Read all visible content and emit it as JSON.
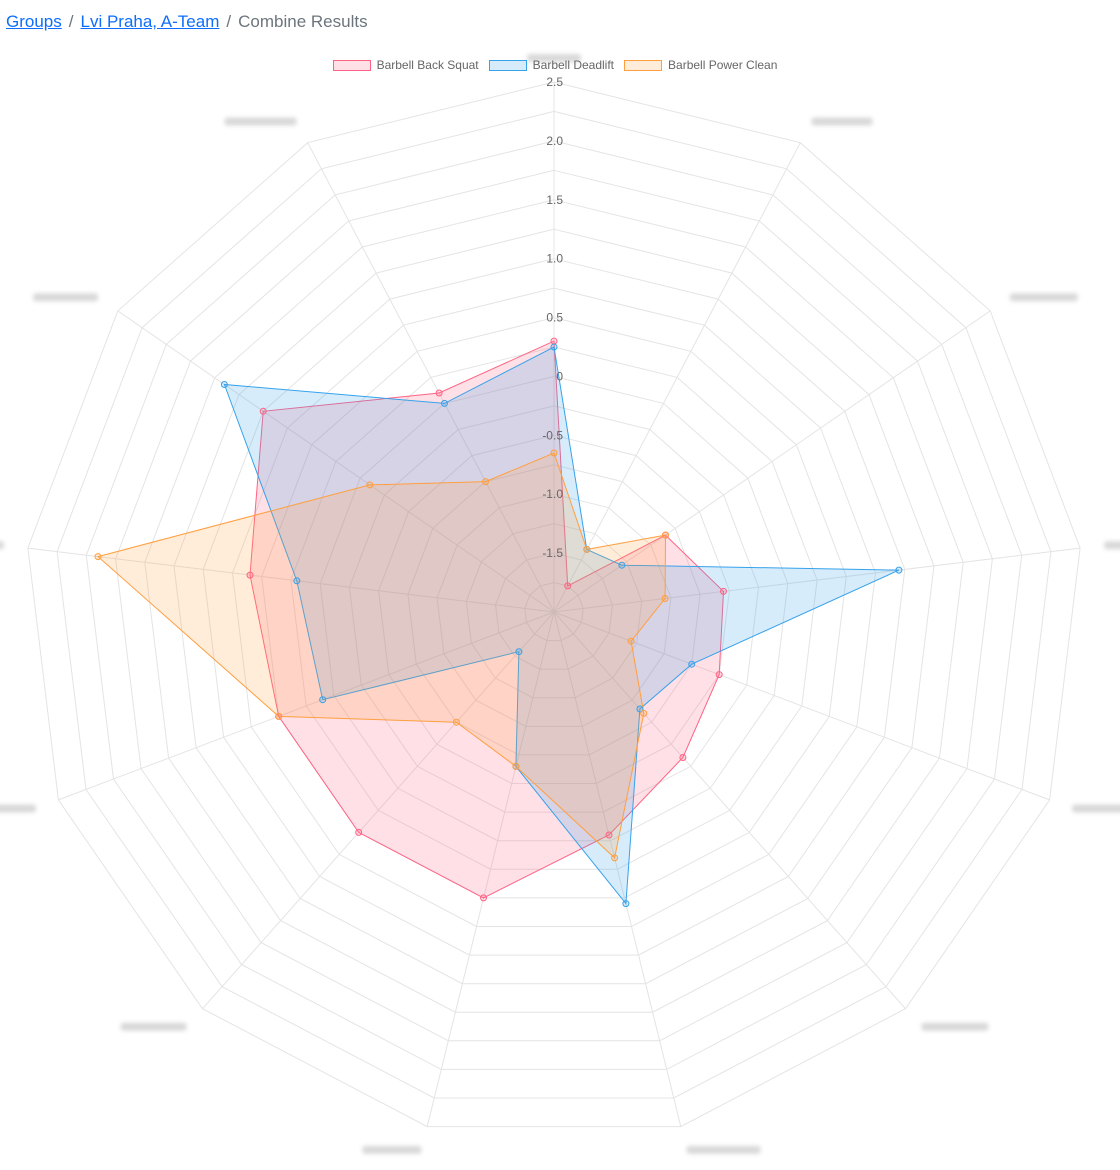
{
  "breadcrumb": {
    "items": [
      "Groups",
      "Lvi Praha, A-Team"
    ],
    "current": "Combine Results",
    "separator": "/"
  },
  "chart_data": {
    "type": "radar",
    "title": "",
    "labels": [
      "",
      "",
      "",
      "",
      "",
      "",
      "",
      "",
      "",
      "",
      "",
      "",
      ""
    ],
    "r_ticks": [
      "-1.5",
      "-1.0",
      "-0.5",
      "0",
      "0.5",
      "1.0",
      "1.5",
      "2.0",
      "2.5"
    ],
    "r_min": -2,
    "r_max": 2.5,
    "grid": true,
    "legend_position": "top",
    "series": [
      {
        "name": "Barbell Back Squat",
        "color": "#ff6384",
        "values": [
          0.3,
          -1.75,
          -0.85,
          -0.55,
          -0.5,
          -0.35,
          -0.05,
          0.5,
          0.5,
          0.5,
          0.6,
          1.0,
          0.1
        ]
      },
      {
        "name": "Barbell Deadlift",
        "color": "#36a2eb",
        "values": [
          0.25,
          -1.4,
          -1.3,
          0.95,
          -0.75,
          -0.9,
          0.55,
          -0.65,
          -1.55,
          0.1,
          0.2,
          1.4,
          0.0
        ]
      },
      {
        "name": "Barbell Power Clean",
        "color": "#ff9f40",
        "values": [
          -0.65,
          -1.4,
          -0.85,
          -1.05,
          -1.3,
          -0.85,
          0.15,
          -0.65,
          -0.75,
          0.5,
          1.9,
          -0.1,
          -0.75
        ]
      }
    ]
  }
}
